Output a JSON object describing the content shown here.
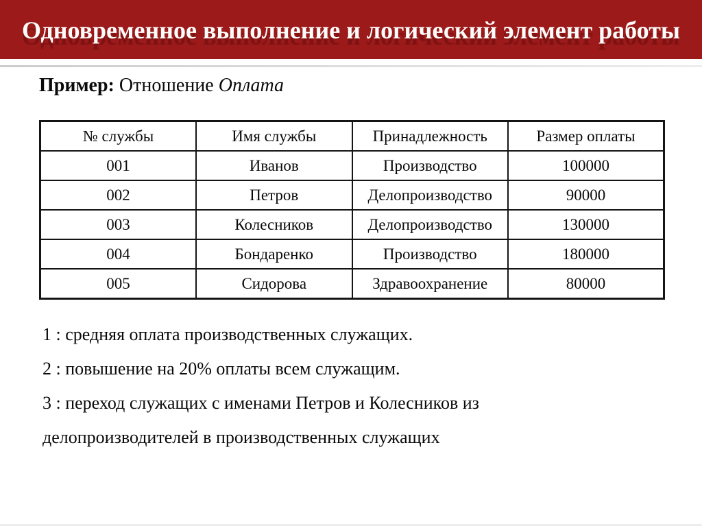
{
  "slide_title": "Одновременное выполнение и логический элемент работы",
  "example": {
    "label": "Пример:",
    "prefix": "Отношение",
    "relation": "Оплата"
  },
  "table": {
    "headers": [
      "№ службы",
      "Имя службы",
      "Принадлежность",
      "Размер оплаты"
    ],
    "rows": [
      [
        "001",
        "Иванов",
        "Производство",
        "100000"
      ],
      [
        "002",
        "Петров",
        "Делопроизводство",
        "90000"
      ],
      [
        "003",
        "Колесников",
        "Делопроизводство",
        "130000"
      ],
      [
        "004",
        "Бондаренко",
        "Производство",
        "180000"
      ],
      [
        "005",
        "Сидорова",
        "Здравоохранение",
        "80000"
      ]
    ]
  },
  "notes": [
    "1 : средняя оплата производственных служащих.",
    "2 : повышение на 20% оплаты всем служащим.",
    "3 : переход служащих с именами Петров и Колесников из делопроизводителей в производственных служащих"
  ],
  "colors": {
    "banner_bg": "#9C1A1A",
    "banner_text": "#FDFDFC",
    "banner_text_shadow": "#6A0D0D",
    "text": "#0A0A0A",
    "table_border": "#141414"
  }
}
